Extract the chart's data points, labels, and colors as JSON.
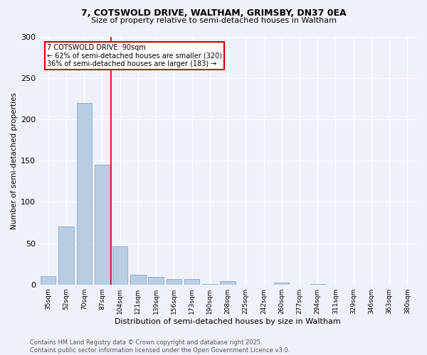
{
  "title_line1": "7, COTSWOLD DRIVE, WALTHAM, GRIMSBY, DN37 0EA",
  "title_line2": "Size of property relative to semi-detached houses in Waltham",
  "xlabel": "Distribution of semi-detached houses by size in Waltham",
  "ylabel": "Number of semi-detached properties",
  "categories": [
    "35sqm",
    "52sqm",
    "70sqm",
    "87sqm",
    "104sqm",
    "121sqm",
    "139sqm",
    "156sqm",
    "173sqm",
    "190sqm",
    "208sqm",
    "225sqm",
    "242sqm",
    "260sqm",
    "277sqm",
    "294sqm",
    "311sqm",
    "329sqm",
    "346sqm",
    "363sqm",
    "380sqm"
  ],
  "values": [
    10,
    70,
    220,
    145,
    46,
    12,
    9,
    7,
    7,
    1,
    4,
    0,
    0,
    2,
    0,
    1,
    0,
    0,
    0,
    0,
    0
  ],
  "bar_color": "#b8cce4",
  "bar_edge_color": "#7a9fc2",
  "highlight_line_color": "#cc0000",
  "highlight_bin": 3,
  "annotation_line1": "7 COTSWOLD DRIVE: 90sqm",
  "annotation_line2": "← 62% of semi-detached houses are smaller (320)",
  "annotation_line3": "36% of semi-detached houses are larger (183) →",
  "annotation_box_color": "#cc0000",
  "ylim": [
    0,
    300
  ],
  "yticks": [
    0,
    50,
    100,
    150,
    200,
    250,
    300
  ],
  "footer_line1": "Contains HM Land Registry data © Crown copyright and database right 2025.",
  "footer_line2": "Contains public sector information licensed under the Open Government Licence v3.0.",
  "background_color": "#eef2f8",
  "plot_bg_color": "#eef2f8",
  "grid_color": "#ffffff",
  "title1_fontsize": 9,
  "title2_fontsize": 8,
  "xlabel_fontsize": 8,
  "ylabel_fontsize": 7.5,
  "xtick_fontsize": 6.5,
  "ytick_fontsize": 8,
  "footer_fontsize": 6
}
